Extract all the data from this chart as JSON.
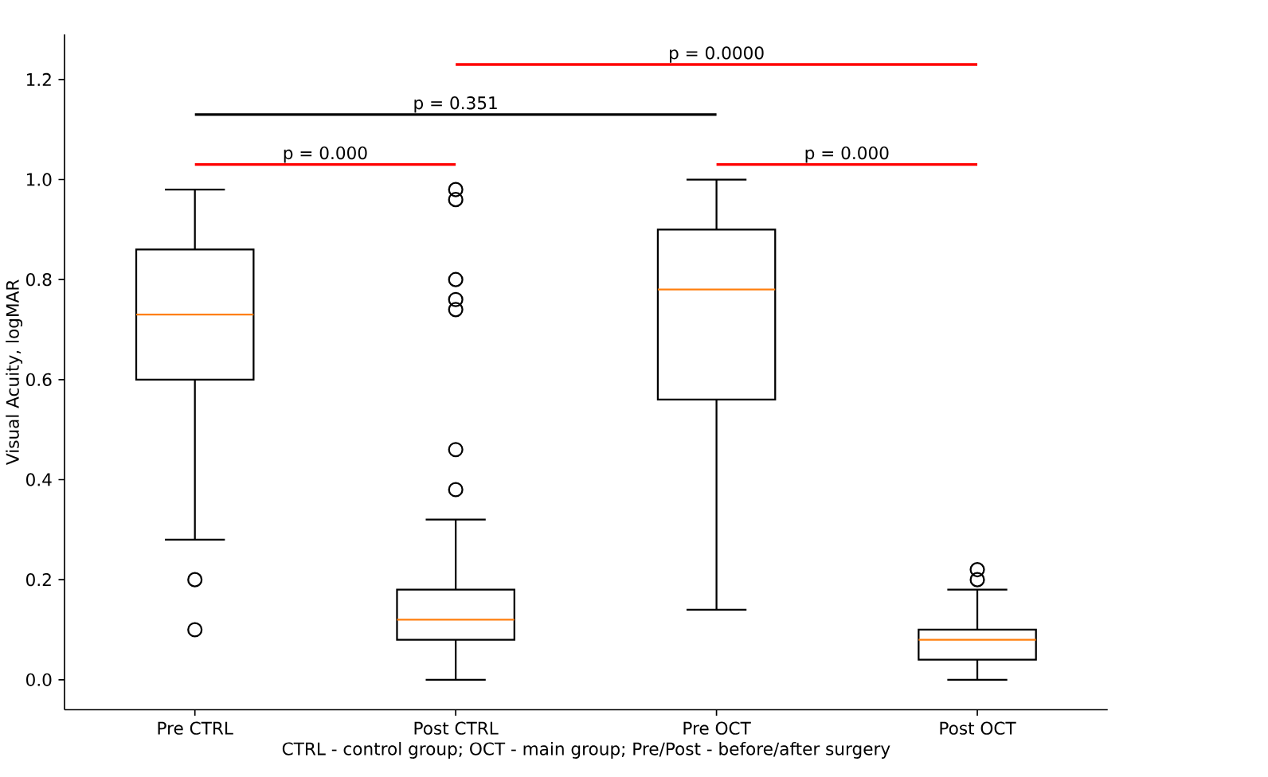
{
  "chart_data": {
    "type": "box",
    "categories": [
      "Pre CTRL",
      "Post CTRL",
      "Pre OCT",
      "Post OCT"
    ],
    "boxes": [
      {
        "low": 0.28,
        "q1": 0.6,
        "median": 0.73,
        "q3": 0.86,
        "high": 0.98,
        "outliers": [
          0.2,
          0.1
        ]
      },
      {
        "low": 0.0,
        "q1": 0.08,
        "median": 0.12,
        "q3": 0.18,
        "high": 0.32,
        "outliers": [
          0.98,
          0.96,
          0.8,
          0.76,
          0.74,
          0.46,
          0.38
        ]
      },
      {
        "low": 0.14,
        "q1": 0.56,
        "median": 0.78,
        "q3": 0.9,
        "high": 1.0
      },
      {
        "low": 0.0,
        "q1": 0.04,
        "median": 0.08,
        "q3": 0.1,
        "high": 0.18,
        "outliers": [
          0.22,
          0.2
        ]
      }
    ],
    "color": "#000000",
    "xlabel": "CTRL - control group; OCT - main group; Pre/Post - before/after surgery",
    "ylabel": "Visual Acuity, logMAR",
    "ylim": [
      -0.06,
      1.29
    ],
    "yticks": [
      {
        "value": 0,
        "label": "0.0"
      },
      0.2,
      0.4,
      0.6,
      0.8,
      {
        "value": 1,
        "label": "1.0"
      },
      1.2
    ],
    "annotations": [
      "p = 0.000",
      "p = 0.351",
      "p = 0.0000",
      "p = 0.000"
    ],
    "grid": false
  }
}
